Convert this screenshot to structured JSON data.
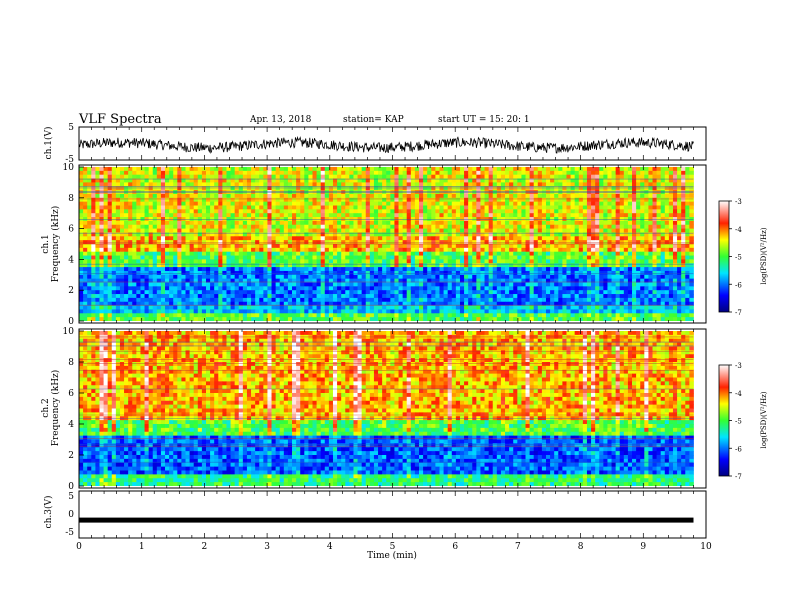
{
  "header": {
    "title": "VLF Spectra",
    "date": "Apr. 13, 2018",
    "station": "station= KAP",
    "start": "start  UT =   15: 20: 1"
  },
  "chart_data": [
    {
      "type": "line",
      "id": "ch1-waveform",
      "ylabel": "ch.1(V)",
      "ylim": [
        -5,
        5
      ],
      "yticks": [
        "5",
        "-5"
      ],
      "xlim": [
        0,
        10
      ],
      "note": "noisy waveform trace around about -0.5 V, amplitude about +/-2 V"
    },
    {
      "type": "heatmap",
      "id": "ch1-spectrogram",
      "ylabel_line1": "ch.1",
      "ylabel_line2": "Frequency (kHz)",
      "ylim": [
        0,
        10
      ],
      "yticks": [
        "0",
        "2",
        "4",
        "6",
        "8",
        "10"
      ],
      "xlim": [
        0,
        10
      ],
      "colorbar": {
        "label": "log(PSD)(V²/Hz)",
        "range": [
          -7,
          -3
        ],
        "ticks": [
          "-3",
          "-4",
          "-5",
          "-6",
          "-7"
        ]
      },
      "bands": [
        {
          "from": 0.0,
          "to": 0.5,
          "level": -5.0
        },
        {
          "from": 0.5,
          "to": 1.0,
          "level": -5.7
        },
        {
          "from": 1.0,
          "to": 3.5,
          "level": -6.0
        },
        {
          "from": 3.5,
          "to": 4.5,
          "level": -5.0
        },
        {
          "from": 4.5,
          "to": 5.5,
          "level": -4.2
        },
        {
          "from": 5.5,
          "to": 10.0,
          "level": -4.5
        }
      ]
    },
    {
      "type": "heatmap",
      "id": "ch2-spectrogram",
      "ylabel_line1": "ch.2",
      "ylabel_line2": "Frequency (kHz)",
      "ylim": [
        0,
        10
      ],
      "yticks": [
        "0",
        "2",
        "4",
        "6",
        "8",
        "10"
      ],
      "xlim": [
        0,
        10
      ],
      "colorbar": {
        "label": "log(PSD)(V²/Hz)",
        "range": [
          -7,
          -3
        ],
        "ticks": [
          "-3",
          "-4",
          "-5",
          "-6",
          "-7"
        ]
      },
      "bands": [
        {
          "from": 0.0,
          "to": 0.8,
          "level": -5.2
        },
        {
          "from": 0.8,
          "to": 3.3,
          "level": -6.1
        },
        {
          "from": 3.3,
          "to": 4.2,
          "level": -5.0
        },
        {
          "from": 4.2,
          "to": 10.0,
          "level": -4.2
        }
      ]
    },
    {
      "type": "line",
      "id": "ch3-waveform",
      "ylabel": "ch.3(V)",
      "ylim": [
        -5,
        5
      ],
      "yticks": [
        "5",
        "0",
        "-5"
      ],
      "xlim": [
        0,
        10
      ],
      "value": -1.2,
      "note": "flat trace near -1.2 V"
    }
  ],
  "xaxis": {
    "label": "Time (min)",
    "ticks": [
      "0",
      "1",
      "2",
      "3",
      "4",
      "5",
      "6",
      "7",
      "8",
      "9",
      "10"
    ]
  }
}
